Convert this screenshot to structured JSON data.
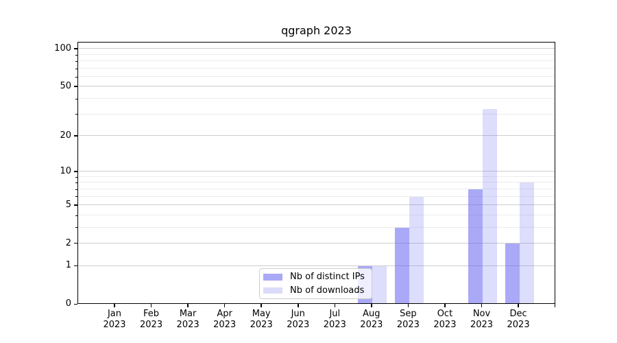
{
  "chart_data": {
    "type": "bar",
    "title": "qgraph 2023",
    "categories": [
      "Jan",
      "Feb",
      "Mar",
      "Apr",
      "May",
      "Jun",
      "Jul",
      "Aug",
      "Sep",
      "Oct",
      "Nov",
      "Dec"
    ],
    "year_label": "2023",
    "series": [
      {
        "name": "Nb of distinct IPs",
        "color": "#a9a9f7",
        "fill": "rgba(99,99,240,0.55)",
        "values": [
          0,
          0,
          0,
          0,
          0,
          0,
          0,
          1,
          3,
          0,
          7,
          2
        ]
      },
      {
        "name": "Nb of downloads",
        "color": "#dcdcf8",
        "fill": "rgba(99,99,240,0.22)",
        "values": [
          0,
          0,
          0,
          0,
          0,
          0,
          0,
          1,
          6,
          0,
          33,
          8
        ]
      }
    ],
    "y_scale": "log1p",
    "ylim": [
      0,
      116
    ],
    "y_ticks_major": [
      0,
      1,
      2,
      5,
      10,
      20,
      50,
      100
    ],
    "y_ticks_minor": [
      3,
      4,
      6,
      7,
      8,
      9,
      30,
      40,
      60,
      70,
      80,
      90
    ],
    "grid": "on",
    "legend_position": "lower center inside plot",
    "colors": {
      "grid_major": "#cdcdcd",
      "grid_minor": "#ececec",
      "axis": "#000000",
      "background": "#ffffff"
    }
  }
}
